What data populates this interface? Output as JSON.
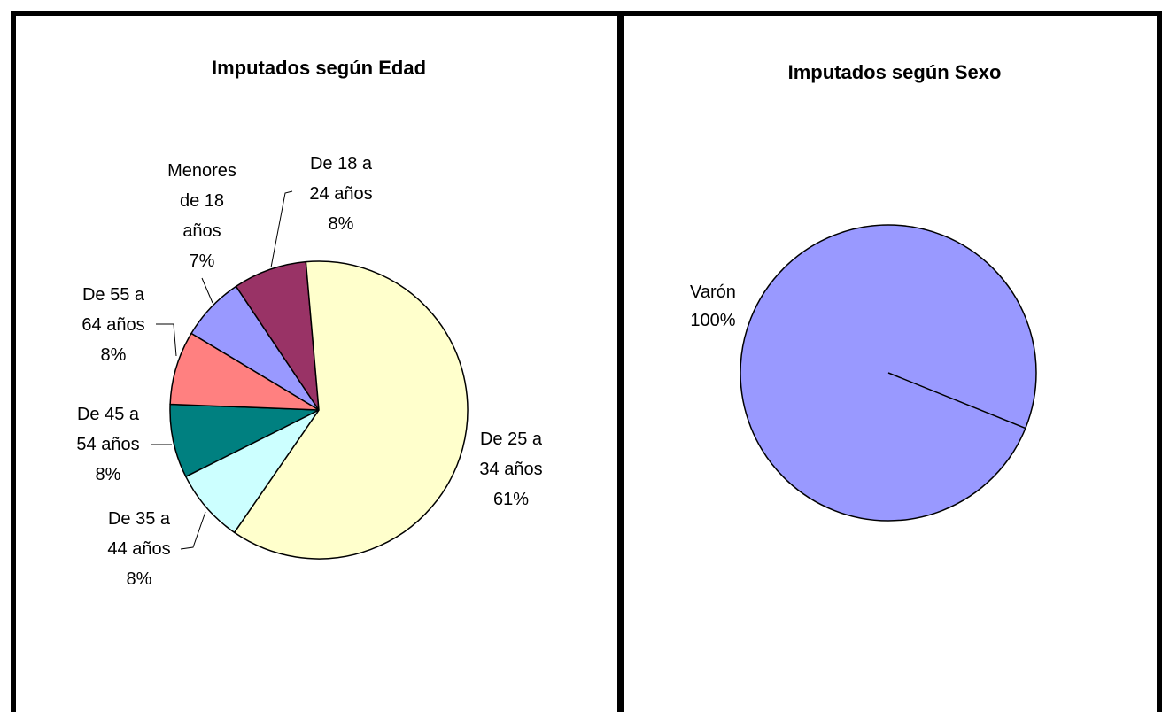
{
  "chart_data": [
    {
      "type": "pie",
      "title": "Imputados según Edad",
      "categories": [
        "Menores de 18 años",
        "De 18 a 24 años",
        "De 25 a 34 años",
        "De 35 a 44 años",
        "De 45 a 54 años",
        "De 55 a 64 años"
      ],
      "values": [
        7,
        8,
        61,
        8,
        8,
        8
      ],
      "value_labels": [
        "7%",
        "8%",
        "61%",
        "8%",
        "8%",
        "8%"
      ],
      "colors": [
        "#9999ff",
        "#993366",
        "#ffffcc",
        "#ccffff",
        "#008080",
        "#ff8080"
      ]
    },
    {
      "type": "pie",
      "title": "Imputados según Sexo",
      "categories": [
        "Varón"
      ],
      "values": [
        100
      ],
      "value_labels": [
        "100%"
      ],
      "colors": [
        "#9999ff"
      ]
    }
  ]
}
